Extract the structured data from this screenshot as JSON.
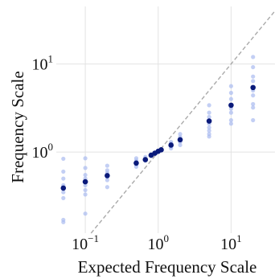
{
  "chart_data": {
    "type": "scatter",
    "title": "",
    "xlabel": "Expected Frequency Scale",
    "ylabel": "Frequency Scale",
    "xscale": "log",
    "yscale": "log",
    "xlim": [
      0.04,
      40
    ],
    "ylim": [
      0.12,
      45
    ],
    "grid": true,
    "x_ticks": [
      {
        "value": 0.1,
        "base": "10",
        "exp": "−1"
      },
      {
        "value": 1,
        "base": "10",
        "exp": "0"
      },
      {
        "value": 10,
        "base": "10",
        "exp": "1"
      }
    ],
    "y_ticks": [
      {
        "value": 1,
        "base": "10",
        "exp": "0"
      },
      {
        "value": 10,
        "base": "10",
        "exp": "1"
      }
    ],
    "reference_line": {
      "style": "dashed",
      "color": "#aaaaaa",
      "relation": "y = x"
    },
    "colors": {
      "mean": "#0a1a7a",
      "sample": "#a9bbf0"
    },
    "series": [
      {
        "role": "individual-samples",
        "points": [
          [
            0.05,
            0.84
          ],
          [
            0.05,
            0.6
          ],
          [
            0.05,
            0.5
          ],
          [
            0.05,
            0.42
          ],
          [
            0.05,
            0.35
          ],
          [
            0.05,
            0.3
          ],
          [
            0.05,
            0.17
          ],
          [
            0.05,
            0.16
          ],
          [
            0.1,
            0.85
          ],
          [
            0.1,
            0.66
          ],
          [
            0.1,
            0.55
          ],
          [
            0.1,
            0.5
          ],
          [
            0.1,
            0.42
          ],
          [
            0.1,
            0.37
          ],
          [
            0.1,
            0.33
          ],
          [
            0.1,
            0.2
          ],
          [
            0.2,
            0.7
          ],
          [
            0.2,
            0.62
          ],
          [
            0.2,
            0.58
          ],
          [
            0.2,
            0.52
          ],
          [
            0.2,
            0.48
          ],
          [
            0.2,
            0.4
          ],
          [
            0.5,
            0.85
          ],
          [
            0.5,
            0.8
          ],
          [
            0.5,
            0.72
          ],
          [
            0.5,
            0.68
          ],
          [
            0.667,
            0.88
          ],
          [
            0.667,
            0.84
          ],
          [
            0.667,
            0.8
          ],
          [
            0.8,
            0.94
          ],
          [
            0.8,
            0.92
          ],
          [
            0.9,
            0.98
          ],
          [
            1.0,
            1.02
          ],
          [
            1.1,
            1.06
          ],
          [
            1.5,
            1.3
          ],
          [
            1.5,
            1.25
          ],
          [
            1.5,
            1.15
          ],
          [
            1.5,
            1.1
          ],
          [
            2.0,
            1.6
          ],
          [
            2.0,
            1.48
          ],
          [
            2.0,
            1.3
          ],
          [
            2.0,
            1.2
          ],
          [
            5,
            3.4
          ],
          [
            5,
            2.8
          ],
          [
            5,
            2.5
          ],
          [
            5,
            2.1
          ],
          [
            5,
            1.9
          ],
          [
            5,
            1.75
          ],
          [
            5,
            1.6
          ],
          [
            5,
            1.5
          ],
          [
            10,
            5.6
          ],
          [
            10,
            4.7
          ],
          [
            10,
            4.0
          ],
          [
            10,
            3.1
          ],
          [
            10,
            2.8
          ],
          [
            10,
            2.3
          ],
          [
            10,
            2.1
          ],
          [
            20,
            12
          ],
          [
            20,
            9.2
          ],
          [
            20,
            7.2
          ],
          [
            20,
            6.4
          ],
          [
            20,
            5.0
          ],
          [
            20,
            4.4
          ],
          [
            20,
            3.5
          ],
          [
            20,
            3.2
          ],
          [
            20,
            2.3
          ]
        ]
      },
      {
        "role": "mean",
        "points": [
          [
            0.05,
            0.39
          ],
          [
            0.1,
            0.46
          ],
          [
            0.2,
            0.54
          ],
          [
            0.5,
            0.75
          ],
          [
            0.667,
            0.82
          ],
          [
            0.8,
            0.92
          ],
          [
            0.9,
            0.97
          ],
          [
            1.0,
            1.02
          ],
          [
            1.1,
            1.06
          ],
          [
            1.5,
            1.2
          ],
          [
            2.0,
            1.38
          ],
          [
            5,
            2.25
          ],
          [
            10,
            3.4
          ],
          [
            20,
            5.4
          ]
        ]
      }
    ]
  }
}
